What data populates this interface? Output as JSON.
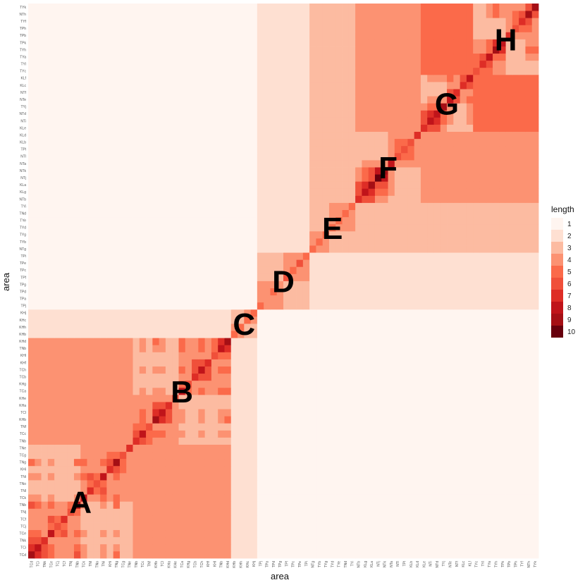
{
  "chart_data": {
    "type": "heatmap",
    "title": "",
    "xlabel": "area",
    "ylabel": "area",
    "legend": {
      "title": "length",
      "position": "right",
      "levels": [
        1,
        2,
        3,
        4,
        5,
        6,
        7,
        8,
        9,
        10
      ],
      "colors": [
        "#fff5f0",
        "#fee0d2",
        "#fcbba1",
        "#fc9272",
        "#fb6a4a",
        "#f0503a",
        "#de2d26",
        "#c0141a",
        "#a50f15",
        "#67000d"
      ]
    },
    "tick_labels": [
      "TCd",
      "TCi",
      "TNk",
      "TCe",
      "TCj",
      "TCf",
      "TNj",
      "TNb",
      "TCk",
      "TNl",
      "TNo",
      "TNi",
      "KHi",
      "TNg",
      "TCg",
      "TNe",
      "TNb",
      "TCc",
      "TNf",
      "KHb",
      "TCl",
      "KHa",
      "KHe",
      "TCa",
      "KHg",
      "TCb",
      "TCh",
      "KHf",
      "KHl",
      "TNb",
      "KHd",
      "KHb",
      "KHh",
      "KHc",
      "KHj",
      "TPj",
      "TPa",
      "TPd",
      "TPg",
      "TPf",
      "TPc",
      "TPe",
      "TPi",
      "NTg",
      "TYb",
      "TYg",
      "TYd",
      "TYe",
      "TNd",
      "TYi",
      "NTb",
      "KLg",
      "KLa",
      "NTj",
      "NTk",
      "NTa",
      "NTl",
      "TPl",
      "KLb",
      "KLd",
      "KLe",
      "NTi",
      "NTd",
      "TYj",
      "NTe",
      "NTf",
      "KLc",
      "KLf",
      "TYc",
      "TYl",
      "TYa",
      "TYh",
      "TPk",
      "TPb",
      "TPh",
      "TYf",
      "NTh",
      "TYk"
    ],
    "clusters": [
      {
        "name": "A",
        "start": 0,
        "size": 16,
        "diag": [
          9,
          8,
          7,
          8,
          6,
          7,
          6,
          9,
          8,
          7,
          6,
          8,
          7,
          9,
          6,
          7
        ]
      },
      {
        "name": "B",
        "start": 16,
        "size": 15,
        "diag": [
          7,
          8,
          6,
          9,
          8,
          7,
          6,
          8,
          6,
          7,
          8,
          7,
          6,
          8,
          9
        ]
      },
      {
        "name": "C",
        "start": 31,
        "size": 4,
        "diag": [
          5,
          5,
          5,
          5
        ]
      },
      {
        "name": "D",
        "start": 35,
        "size": 8,
        "diag": [
          5,
          4,
          5,
          4,
          6,
          5,
          6,
          5
        ]
      },
      {
        "name": "E",
        "start": 43,
        "size": 7,
        "diag": [
          5,
          5,
          5,
          5,
          5,
          5,
          5
        ]
      },
      {
        "name": "F",
        "start": 50,
        "size": 10,
        "diag": [
          7,
          8,
          9,
          10,
          9,
          8,
          6,
          6,
          6,
          7
        ]
      },
      {
        "name": "G",
        "start": 60,
        "size": 8,
        "diag": [
          7,
          8,
          8,
          9,
          8,
          7,
          7,
          8
        ]
      },
      {
        "name": "H",
        "start": 68,
        "size": 10,
        "diag": [
          6,
          7,
          8,
          9,
          8,
          7,
          6,
          7,
          9,
          9
        ]
      }
    ],
    "groups": [
      {
        "members": [
          0,
          1
        ],
        "value": 4
      },
      {
        "members": [
          2,
          3,
          4,
          5,
          6,
          7
        ],
        "value": 3
      },
      {
        "members": [
          0,
          1,
          2,
          3,
          4,
          5,
          6,
          7
        ],
        "value": 1
      },
      {
        "members": [
          0,
          1
        ],
        "value": 2,
        "override_pairs_between": [
          [
            0,
            1
          ],
          [
            0,
            2
          ],
          [
            1,
            2
          ]
        ]
      }
    ],
    "cluster_pair_values": [
      [
        10,
        4,
        3,
        2,
        1,
        1,
        1,
        1,
        1
      ],
      [
        4,
        10,
        3,
        2,
        1,
        1,
        1,
        1,
        1
      ],
      [
        2,
        2,
        10,
        1,
        1,
        1,
        1,
        1,
        1
      ],
      [
        1,
        1,
        1,
        10,
        2,
        2,
        2,
        2,
        2
      ],
      [
        1,
        1,
        1,
        2,
        10,
        3,
        3,
        3,
        3
      ],
      [
        1,
        1,
        1,
        2,
        3,
        10,
        4,
        4,
        4
      ],
      [
        1,
        1,
        1,
        2,
        3,
        4,
        10,
        5,
        5
      ],
      [
        1,
        1,
        1,
        2,
        3,
        4,
        5,
        10,
        5
      ]
    ]
  }
}
